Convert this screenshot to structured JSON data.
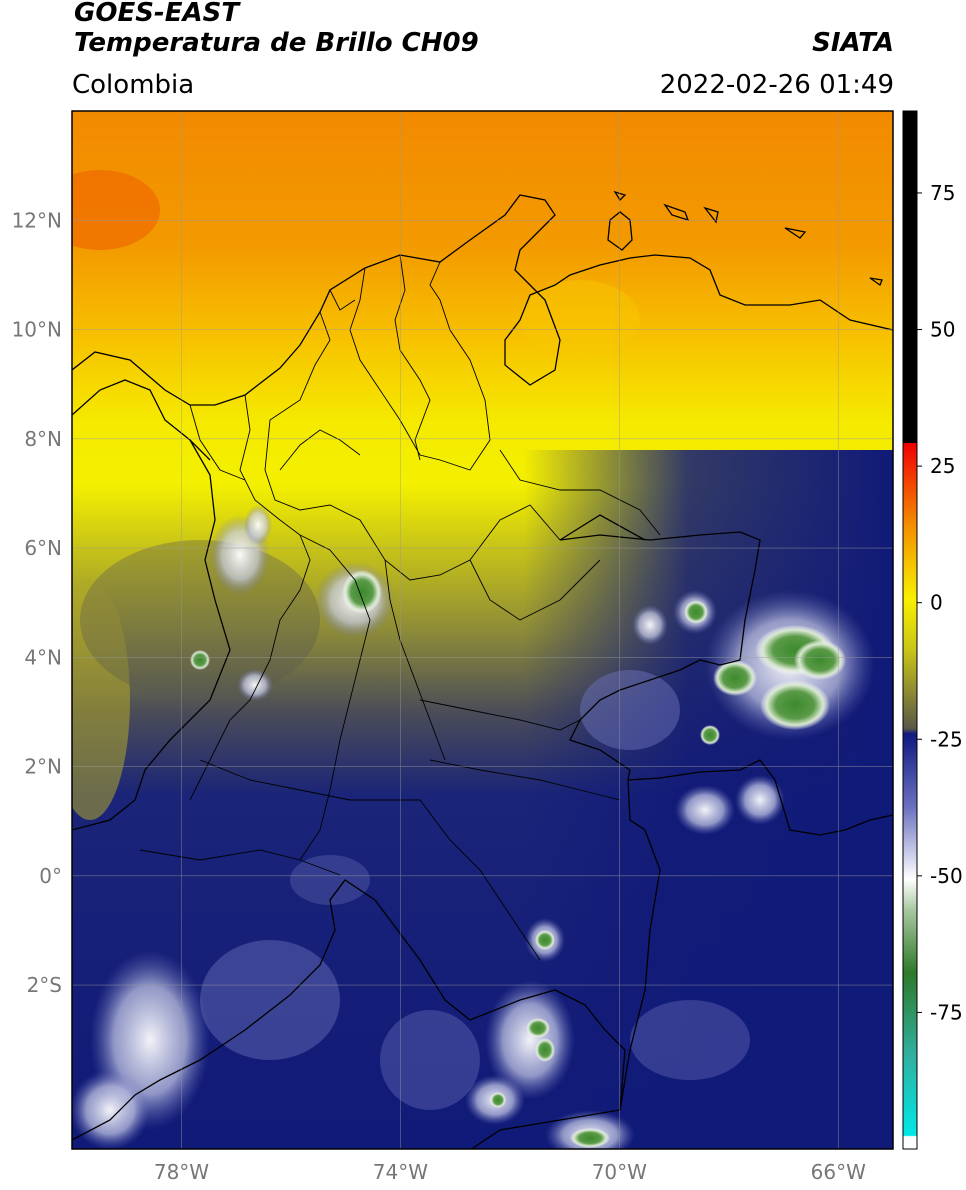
{
  "header": {
    "line1": "GOES-EAST",
    "line2": "Temperatura de Brillo CH09",
    "right_brand": "SIATA",
    "region": "Colombia",
    "datetime": "2022-02-26 01:49"
  },
  "map": {
    "lon_range": [
      -80,
      -65
    ],
    "lat_range": [
      -5,
      14
    ],
    "lat_ticks": [
      {
        "value": 12,
        "label": "12°N"
      },
      {
        "value": 10,
        "label": "10°N"
      },
      {
        "value": 8,
        "label": "8°N"
      },
      {
        "value": 6,
        "label": "6°N"
      },
      {
        "value": 4,
        "label": "4°N"
      },
      {
        "value": 2,
        "label": "2°N"
      },
      {
        "value": 0,
        "label": "0°"
      },
      {
        "value": -2,
        "label": "2°S"
      }
    ],
    "lon_ticks": [
      {
        "value": -78,
        "label": "78°W"
      },
      {
        "value": -74,
        "label": "74°W"
      },
      {
        "value": -70,
        "label": "70°W"
      },
      {
        "value": -66,
        "label": "66°W"
      }
    ],
    "grid": true
  },
  "colorbar": {
    "range": [
      -100,
      90
    ],
    "ticks": [
      {
        "value": 75,
        "label": "75"
      },
      {
        "value": 50,
        "label": "50"
      },
      {
        "value": 25,
        "label": "25"
      },
      {
        "value": 0,
        "label": "0"
      },
      {
        "value": -25,
        "label": "-25"
      },
      {
        "value": -50,
        "label": "-50"
      },
      {
        "value": -75,
        "label": "-75"
      }
    ]
  },
  "colors": {
    "cold_white": "#ffffff",
    "cyan": "#18d8d0",
    "green": "#3c8a2c",
    "navy": "#101a78",
    "olive": "#8a8a30",
    "yellow": "#f4f000",
    "orange": "#f39000",
    "red": "#f00000",
    "black": "#000000"
  }
}
